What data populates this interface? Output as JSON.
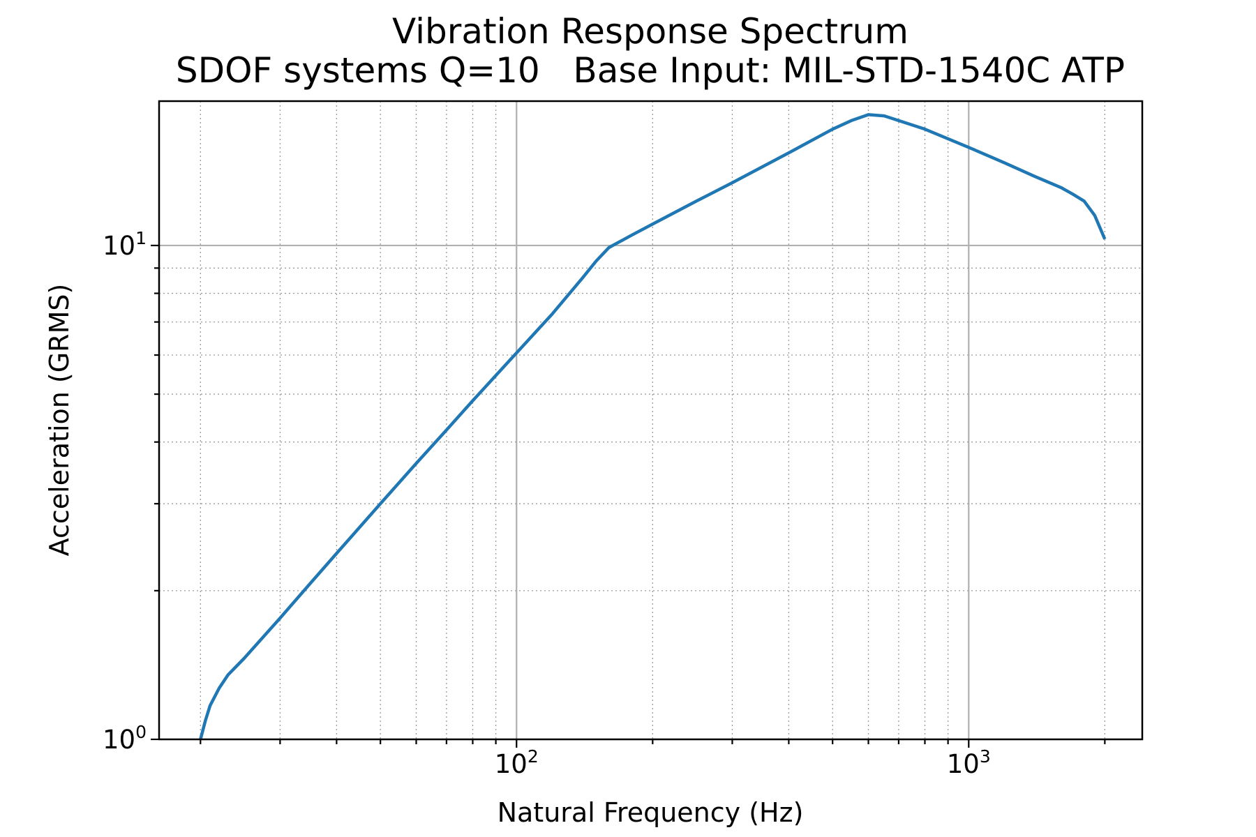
{
  "chart_data": {
    "type": "line",
    "title": "Vibration Response Spectrum",
    "subtitle": "SDOF systems Q=10   Base Input: MIL-STD-1540C ATP",
    "xlabel": "Natural Frequency (Hz)",
    "ylabel": "Acceleration (GRMS)",
    "xscale": "log",
    "yscale": "log",
    "xlim": [
      16.2,
      2420
    ],
    "ylim": [
      1,
      19.6
    ],
    "x_ticks": [
      {
        "value": 100,
        "base": "10",
        "exp": "2"
      },
      {
        "value": 1000,
        "base": "10",
        "exp": "3"
      }
    ],
    "y_ticks": [
      {
        "value": 1,
        "base": "10",
        "exp": "0"
      },
      {
        "value": 10,
        "base": "10",
        "exp": "1"
      }
    ],
    "grid": true,
    "legend": "none",
    "series": [
      {
        "color": "#1f77b4",
        "x": [
          20,
          20.5,
          21,
          22,
          23,
          25,
          28,
          30,
          35,
          40,
          50,
          60,
          70,
          80,
          100,
          120,
          140,
          150,
          160,
          180,
          200,
          250,
          300,
          400,
          500,
          550,
          600,
          650,
          700,
          800,
          1000,
          1200,
          1400,
          1600,
          1700,
          1800,
          1900,
          2000
        ],
        "values": [
          1.0,
          1.09,
          1.17,
          1.27,
          1.35,
          1.46,
          1.64,
          1.76,
          2.07,
          2.38,
          3.0,
          3.62,
          4.23,
          4.85,
          6.06,
          7.27,
          8.6,
          9.3,
          9.9,
          10.5,
          11.05,
          12.3,
          13.4,
          15.4,
          17.2,
          17.9,
          18.4,
          18.3,
          17.9,
          17.2,
          15.8,
          14.7,
          13.8,
          13.1,
          12.7,
          12.3,
          11.5,
          10.3
        ]
      }
    ]
  }
}
